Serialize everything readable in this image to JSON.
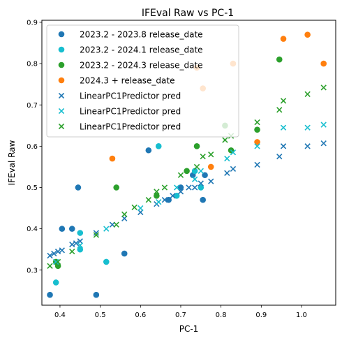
{
  "chart_data": {
    "type": "scatter",
    "title": "IFEval Raw vs PC-1",
    "xlabel": "PC-1",
    "ylabel": "IFEval Raw",
    "xlim": [
      0.355,
      1.085
    ],
    "ylim": [
      0.215,
      0.905
    ],
    "xticks": [
      0.4,
      0.5,
      0.6,
      0.7,
      0.8,
      0.9,
      1.0
    ],
    "xtick_labels": [
      "0.4",
      "0.5",
      "0.6",
      "0.7",
      "0.8",
      "0.9",
      "1.0"
    ],
    "yticks": [
      0.3,
      0.4,
      0.5,
      0.6,
      0.7,
      0.8,
      0.9
    ],
    "ytick_labels": [
      "0.3",
      "0.4",
      "0.5",
      "0.6",
      "0.7",
      "0.8",
      "0.9"
    ],
    "grid": false,
    "legend_position": "top-left",
    "series": [
      {
        "name": "2023.2 - 2023.8 release_date",
        "marker": "circle",
        "color": "#1f77b4",
        "points": [
          [
            0.375,
            0.24
          ],
          [
            0.49,
            0.24
          ],
          [
            0.405,
            0.4
          ],
          [
            0.43,
            0.4
          ],
          [
            0.445,
            0.5
          ],
          [
            0.56,
            0.34
          ],
          [
            0.62,
            0.59
          ],
          [
            0.67,
            0.47
          ],
          [
            0.7,
            0.5
          ],
          [
            0.73,
            0.53
          ],
          [
            0.755,
            0.47
          ],
          [
            0.76,
            0.53
          ]
        ]
      },
      {
        "name": "2023.2 - 2024.1 release_date",
        "marker": "circle",
        "color": "#17becf",
        "points": [
          [
            0.39,
            0.27
          ],
          [
            0.45,
            0.39
          ],
          [
            0.45,
            0.35
          ],
          [
            0.515,
            0.32
          ],
          [
            0.645,
            0.6
          ],
          [
            0.69,
            0.48
          ],
          [
            0.735,
            0.54
          ],
          [
            0.75,
            0.5
          ]
        ]
      },
      {
        "name": "2023.2 - 2024.3 release_date",
        "marker": "circle",
        "color": "#2ca02c",
        "points": [
          [
            0.39,
            0.32
          ],
          [
            0.395,
            0.31
          ],
          [
            0.54,
            0.5
          ],
          [
            0.64,
            0.48
          ],
          [
            0.715,
            0.54
          ],
          [
            0.74,
            0.6
          ],
          [
            0.81,
            0.65
          ],
          [
            0.825,
            0.59
          ],
          [
            0.89,
            0.64
          ],
          [
            0.945,
            0.81
          ]
        ]
      },
      {
        "name": "2024.3 + release_date",
        "marker": "circle",
        "color": "#ff7f0e",
        "points": [
          [
            0.53,
            0.57
          ],
          [
            0.74,
            0.79
          ],
          [
            0.755,
            0.74
          ],
          [
            0.775,
            0.55
          ],
          [
            0.83,
            0.8
          ],
          [
            0.89,
            0.61
          ],
          [
            0.955,
            0.86
          ],
          [
            1.015,
            0.87
          ],
          [
            1.055,
            0.8
          ]
        ]
      },
      {
        "name": "LinearPC1Predictor pred",
        "marker": "x",
        "color": "#1f77b4",
        "points": [
          [
            0.375,
            0.335
          ],
          [
            0.385,
            0.34
          ],
          [
            0.395,
            0.345
          ],
          [
            0.405,
            0.348
          ],
          [
            0.43,
            0.362
          ],
          [
            0.44,
            0.365
          ],
          [
            0.45,
            0.37
          ],
          [
            0.49,
            0.39
          ],
          [
            0.53,
            0.41
          ],
          [
            0.56,
            0.425
          ],
          [
            0.6,
            0.44
          ],
          [
            0.64,
            0.46
          ],
          [
            0.66,
            0.47
          ],
          [
            0.68,
            0.48
          ],
          [
            0.7,
            0.49
          ],
          [
            0.72,
            0.5
          ],
          [
            0.735,
            0.5
          ],
          [
            0.75,
            0.51
          ],
          [
            0.775,
            0.515
          ],
          [
            0.815,
            0.535
          ],
          [
            0.83,
            0.545
          ],
          [
            0.89,
            0.555
          ],
          [
            0.945,
            0.575
          ],
          [
            0.955,
            0.6
          ],
          [
            1.015,
            0.6
          ],
          [
            1.055,
            0.607
          ]
        ]
      },
      {
        "name": "LinearPC1Predictor pred",
        "marker": "x",
        "color": "#17becf",
        "points": [
          [
            0.39,
            0.32
          ],
          [
            0.45,
            0.36
          ],
          [
            0.515,
            0.4
          ],
          [
            0.6,
            0.45
          ],
          [
            0.645,
            0.465
          ],
          [
            0.69,
            0.5
          ],
          [
            0.735,
            0.52
          ],
          [
            0.75,
            0.54
          ],
          [
            0.815,
            0.57
          ],
          [
            0.83,
            0.585
          ],
          [
            0.89,
            0.6
          ],
          [
            0.955,
            0.645
          ],
          [
            1.015,
            0.645
          ],
          [
            1.055,
            0.652
          ]
        ]
      },
      {
        "name": "LinearPC1Predictor pred",
        "marker": "x",
        "color": "#2ca02c",
        "points": [
          [
            0.375,
            0.31
          ],
          [
            0.395,
            0.32
          ],
          [
            0.43,
            0.345
          ],
          [
            0.49,
            0.385
          ],
          [
            0.54,
            0.41
          ],
          [
            0.56,
            0.435
          ],
          [
            0.585,
            0.452
          ],
          [
            0.62,
            0.47
          ],
          [
            0.64,
            0.49
          ],
          [
            0.66,
            0.5
          ],
          [
            0.7,
            0.53
          ],
          [
            0.74,
            0.55
          ],
          [
            0.755,
            0.575
          ],
          [
            0.775,
            0.58
          ],
          [
            0.81,
            0.615
          ],
          [
            0.825,
            0.625
          ],
          [
            0.89,
            0.658
          ],
          [
            0.945,
            0.688
          ],
          [
            0.955,
            0.71
          ],
          [
            1.015,
            0.726
          ],
          [
            1.055,
            0.742
          ]
        ]
      }
    ]
  }
}
